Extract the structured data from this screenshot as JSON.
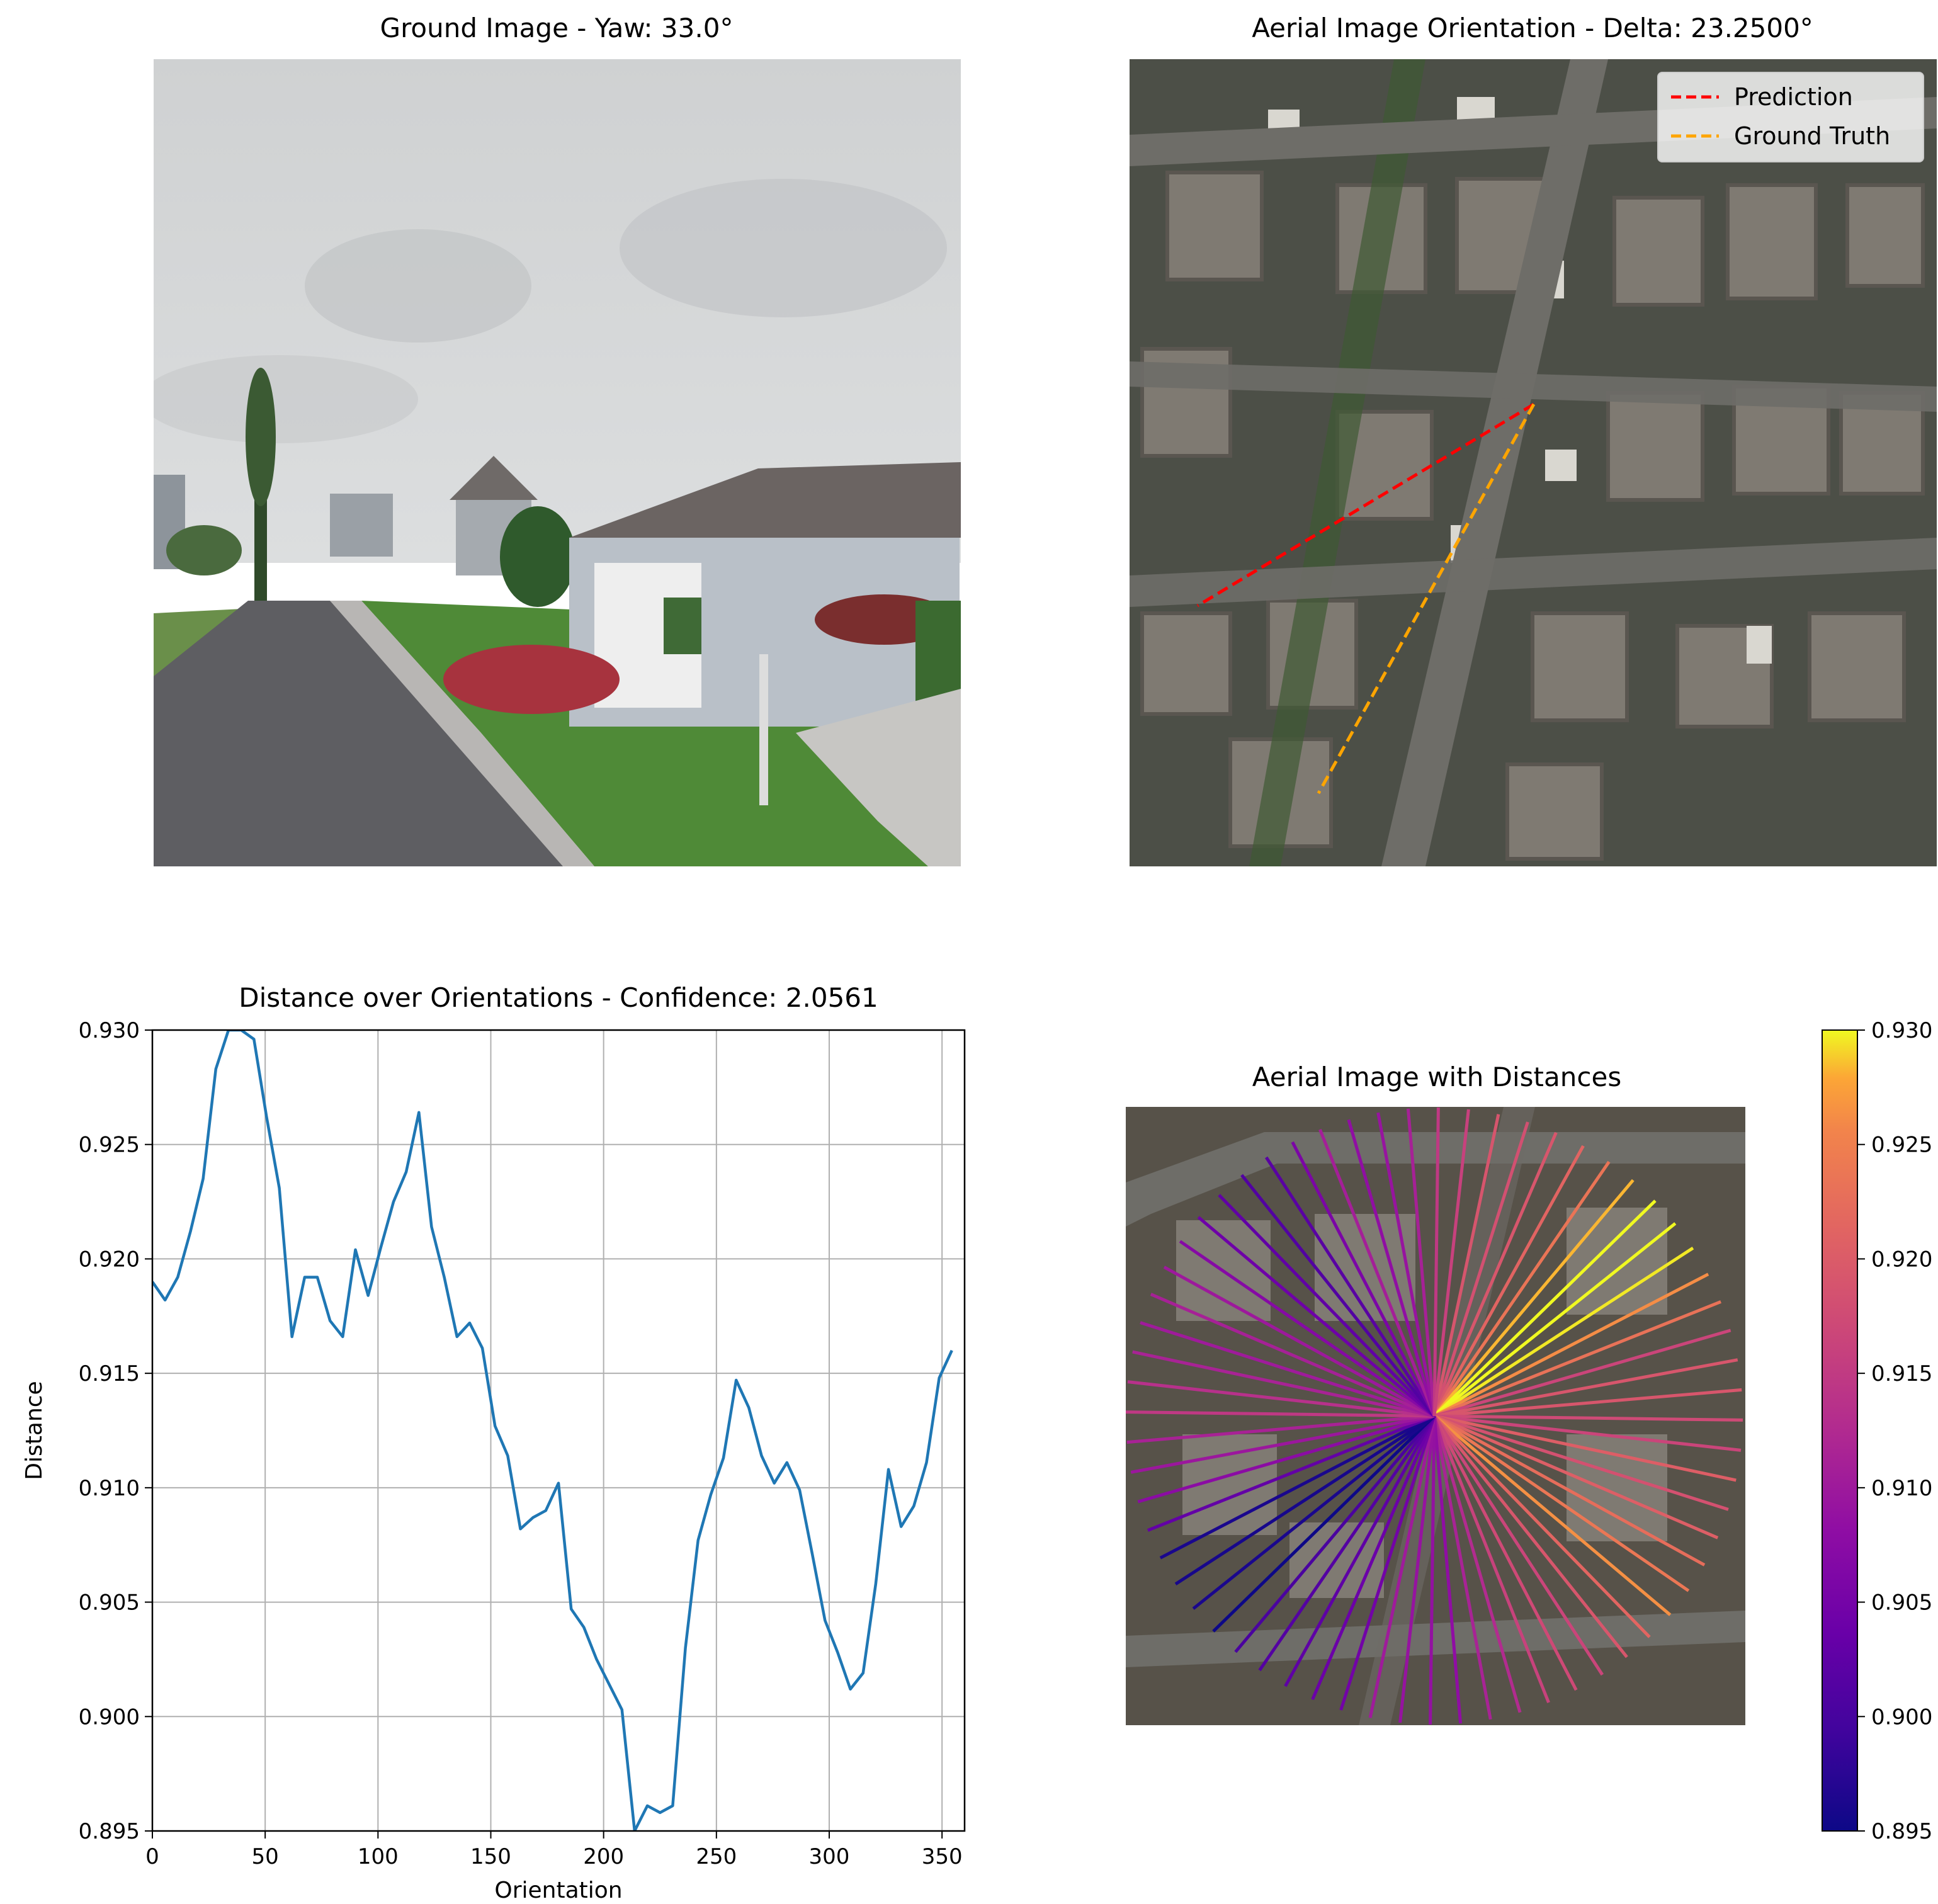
{
  "figure": {
    "panels": [
      {
        "id": "ground",
        "title": "Ground Image - Yaw: 33.0°"
      },
      {
        "id": "aerial",
        "title": "Aerial Image Orientation - Delta: 23.2500°",
        "legend": [
          {
            "label": "Prediction",
            "color": "#ff0000"
          },
          {
            "label": "Ground Truth",
            "color": "#ffa500"
          }
        ]
      },
      {
        "id": "distance",
        "title": "Distance over Orientations - Confidence: 2.0561"
      },
      {
        "id": "aerial-distances",
        "title": "Aerial Image with Distances"
      }
    ],
    "orientation_lines": {
      "prediction_deg": 56.25,
      "ground_truth_deg": 33.0
    }
  },
  "chart_data": [
    {
      "type": "line",
      "title": "Distance over Orientations - Confidence: 2.0561",
      "xlabel": "Orientation",
      "ylabel": "Distance",
      "xlim": [
        0,
        360
      ],
      "ylim": [
        0.895,
        0.93
      ],
      "xticks": [
        "0",
        "50",
        "100",
        "150",
        "200",
        "250",
        "300",
        "350"
      ],
      "yticks": [
        "0.895",
        "0.900",
        "0.905",
        "0.910",
        "0.915",
        "0.920",
        "0.925",
        "0.930"
      ],
      "grid": true,
      "series": [
        {
          "color": "#1f77b4",
          "x": [
            0,
            5.625,
            11.25,
            16.875,
            22.5,
            28.125,
            33.75,
            39.375,
            45,
            50.625,
            56.25,
            61.875,
            67.5,
            73.125,
            78.75,
            84.375,
            90,
            95.625,
            101.25,
            106.875,
            112.5,
            118.125,
            123.75,
            129.375,
            135,
            140.625,
            146.25,
            151.875,
            157.5,
            163.125,
            168.75,
            174.375,
            180,
            185.625,
            191.25,
            196.875,
            202.5,
            208.125,
            213.75,
            219.375,
            225,
            230.625,
            236.25,
            241.875,
            247.5,
            253.125,
            258.75,
            264.375,
            270,
            275.625,
            281.25,
            286.875,
            292.5,
            298.125,
            303.75,
            309.375,
            315,
            320.625,
            326.25,
            331.875,
            337.5,
            343.125,
            348.75,
            354.375
          ],
          "values": [
            0.919,
            0.9182,
            0.9192,
            0.9212,
            0.9235,
            0.9283,
            0.93,
            0.93,
            0.9296,
            0.9262,
            0.9231,
            0.9166,
            0.9192,
            0.9192,
            0.9173,
            0.9166,
            0.9204,
            0.9184,
            0.9205,
            0.9225,
            0.9238,
            0.9264,
            0.9214,
            0.9192,
            0.9166,
            0.9172,
            0.9161,
            0.9127,
            0.9114,
            0.9082,
            0.9087,
            0.909,
            0.9102,
            0.9047,
            0.9039,
            0.9025,
            0.9014,
            0.9003,
            0.895,
            0.8961,
            0.8958,
            0.8961,
            0.903,
            0.9077,
            0.9097,
            0.9113,
            0.9147,
            0.9135,
            0.9114,
            0.9102,
            0.9111,
            0.9099,
            0.9071,
            0.9042,
            0.9028,
            0.9012,
            0.9019,
            0.9058,
            0.9108,
            0.9083,
            0.9092,
            0.9111,
            0.9148,
            0.916
          ]
        }
      ]
    },
    {
      "type": "heatmap",
      "title": "Aerial Image with Distances",
      "colormap": "plasma",
      "clim": [
        0.895,
        0.93
      ],
      "colorbar_ticks": [
        "0.895",
        "0.900",
        "0.905",
        "0.910",
        "0.915",
        "0.920",
        "0.925",
        "0.930"
      ]
    }
  ]
}
